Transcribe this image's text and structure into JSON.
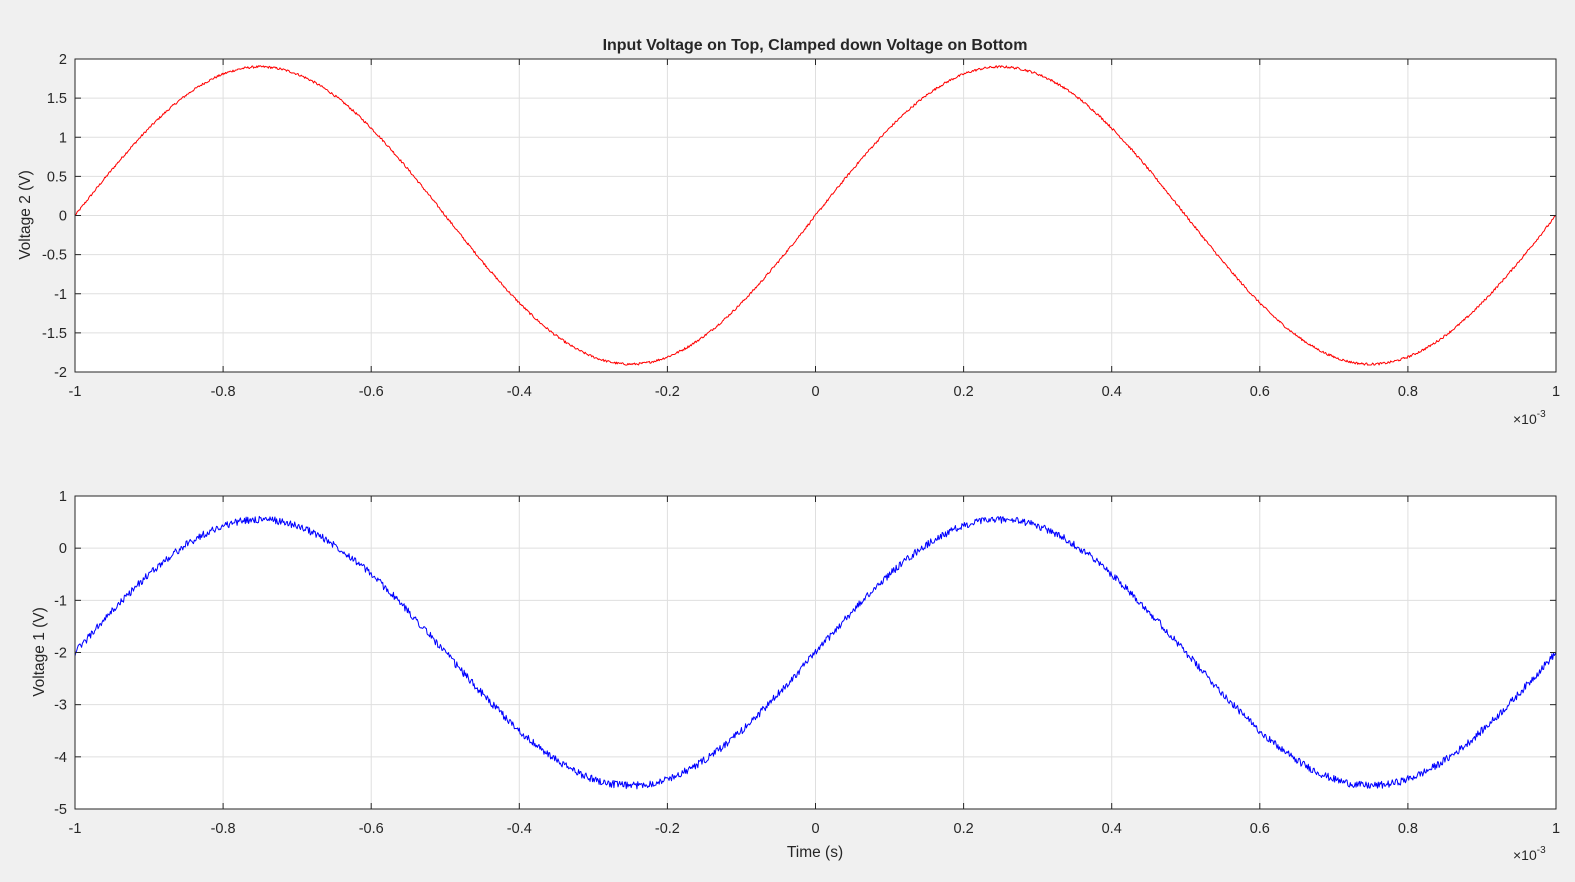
{
  "figure_title": "Input Voltage on Top, Clamped down Voltage on Bottom",
  "colors": {
    "background": "#f0f0f0",
    "axes_face": "#ffffff",
    "grid": "#dfdfdf",
    "axis": "#262626"
  },
  "chart_data": [
    {
      "type": "line",
      "title": "Input Voltage on Top, Clamped down Voltage on Bottom",
      "xlabel": "",
      "ylabel": "Voltage 2 (V)",
      "xlim": [
        -0.001,
        0.001
      ],
      "ylim": [
        -2,
        2
      ],
      "x_tick_labels": [
        "-1",
        "-0.8",
        "-0.6",
        "-0.4",
        "-0.2",
        "0",
        "0.2",
        "0.4",
        "0.6",
        "0.8",
        "1"
      ],
      "y_tick_labels": [
        "-2",
        "-1.5",
        "-1",
        "-0.5",
        "0",
        "0.5",
        "1",
        "1.5",
        "2"
      ],
      "x_exponent": {
        "base": "×10",
        "power": "-3"
      },
      "grid": true,
      "series": [
        {
          "color": "#ff0000",
          "waveform": "sine",
          "amplitude": 1.9,
          "offset": 0,
          "frequency_hz": 1000,
          "noise_amplitude": 0.015,
          "x": [
            -0.001,
            -0.00075,
            -0.0005,
            -0.00025,
            0,
            0.00025,
            0.0005,
            0.00075,
            0.001
          ],
          "values": [
            -0.1,
            1.9,
            0,
            -1.9,
            -0.1,
            1.9,
            0,
            -1.9,
            -0.15
          ]
        }
      ]
    },
    {
      "type": "line",
      "title": "",
      "xlabel": "Time (s)",
      "ylabel": "Voltage 1 (V)",
      "xlim": [
        -0.001,
        0.001
      ],
      "ylim": [
        -5,
        1
      ],
      "x_tick_labels": [
        "-1",
        "-0.8",
        "-0.6",
        "-0.4",
        "-0.2",
        "0",
        "0.2",
        "0.4",
        "0.6",
        "0.8",
        "1"
      ],
      "y_tick_labels": [
        "-5",
        "-4",
        "-3",
        "-2",
        "-1",
        "0",
        "1"
      ],
      "x_exponent": {
        "base": "×10",
        "power": "-3"
      },
      "grid": true,
      "series": [
        {
          "color": "#0000ff",
          "waveform": "sine",
          "amplitude": 2.55,
          "offset": -2.0,
          "frequency_hz": 1000,
          "noise_amplitude": 0.07,
          "x": [
            -0.001,
            -0.00075,
            -0.0005,
            -0.00025,
            0,
            0.00025,
            0.0005,
            0.00075,
            0.001
          ],
          "values": [
            -2.1,
            0.55,
            -2.0,
            -4.55,
            -2.0,
            0.55,
            -2.0,
            -4.55,
            -2.2
          ]
        }
      ]
    }
  ]
}
